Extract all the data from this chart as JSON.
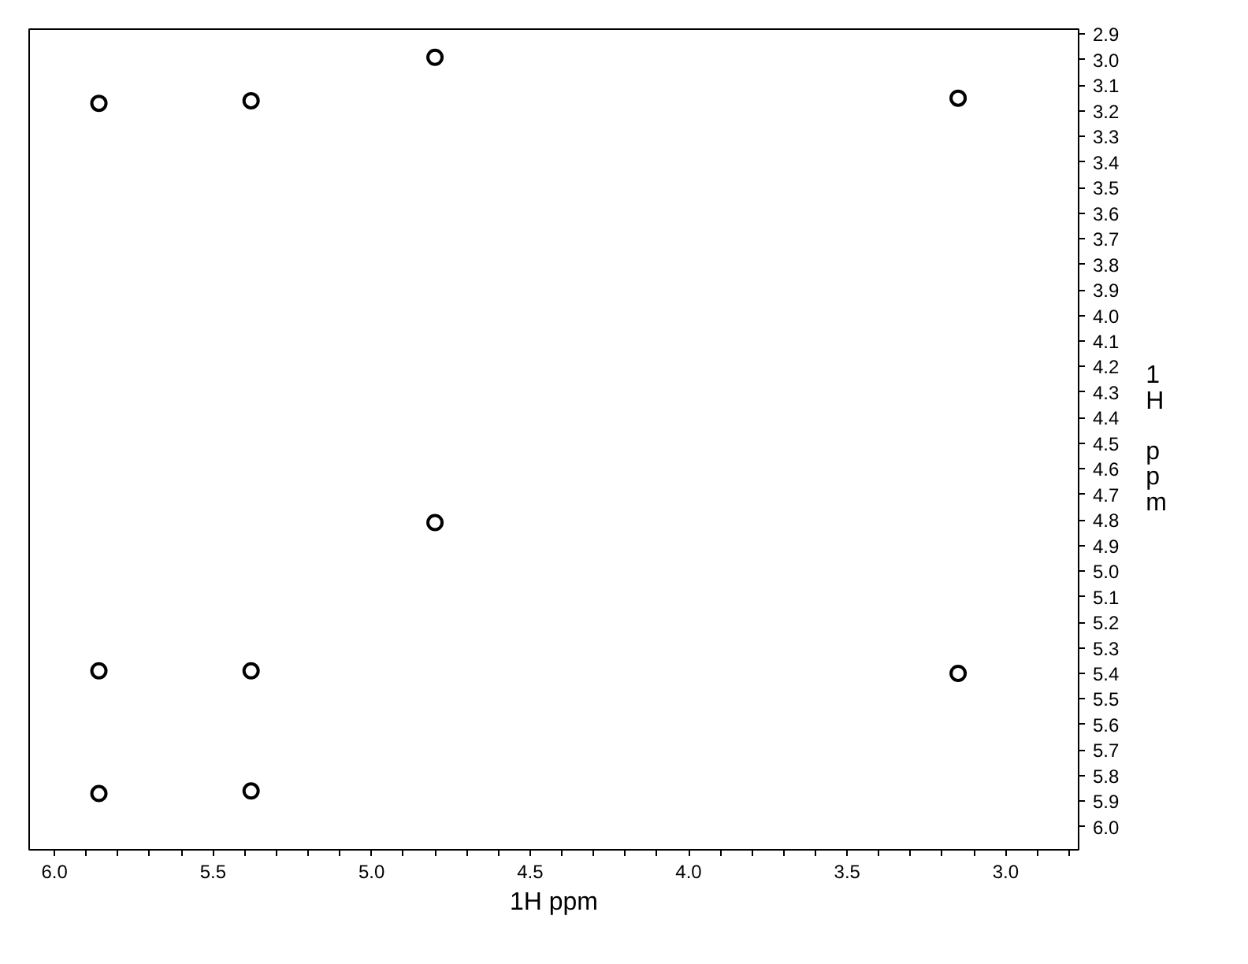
{
  "chart_data": {
    "type": "scatter",
    "xlabel": "1H ppm",
    "ylabel": "1\nH\n\np\np\nm",
    "x": [
      5.86,
      5.38,
      4.8,
      3.15,
      4.8,
      5.86,
      5.38,
      3.15,
      5.86,
      5.38
    ],
    "series": [
      {
        "color": "#000000",
        "values": [
          3.17,
          3.16,
          2.99,
          3.15,
          4.81,
          5.39,
          5.39,
          5.4,
          5.87,
          5.86
        ]
      }
    ],
    "marker": "circle",
    "grid": false,
    "xlim": [
      6.08,
      2.77
    ],
    "ylim": [
      6.09,
      2.88
    ],
    "xticks": [
      {
        "value": 6.0,
        "label": "6.0"
      },
      {
        "value": 5.9,
        "label": null
      },
      {
        "value": 5.8,
        "label": null
      },
      {
        "value": 5.7,
        "label": null
      },
      {
        "value": 5.6,
        "label": null
      },
      {
        "value": 5.5,
        "label": "5.5"
      },
      {
        "value": 5.4,
        "label": null
      },
      {
        "value": 5.3,
        "label": null
      },
      {
        "value": 5.2,
        "label": null
      },
      {
        "value": 5.1,
        "label": null
      },
      {
        "value": 5.0,
        "label": "5.0"
      },
      {
        "value": 4.9,
        "label": null
      },
      {
        "value": 4.8,
        "label": null
      },
      {
        "value": 4.7,
        "label": null
      },
      {
        "value": 4.6,
        "label": null
      },
      {
        "value": 4.5,
        "label": "4.5"
      },
      {
        "value": 4.4,
        "label": null
      },
      {
        "value": 4.3,
        "label": null
      },
      {
        "value": 4.2,
        "label": null
      },
      {
        "value": 4.1,
        "label": null
      },
      {
        "value": 4.0,
        "label": "4.0"
      },
      {
        "value": 3.9,
        "label": null
      },
      {
        "value": 3.8,
        "label": null
      },
      {
        "value": 3.7,
        "label": null
      },
      {
        "value": 3.6,
        "label": null
      },
      {
        "value": 3.5,
        "label": "3.5"
      },
      {
        "value": 3.4,
        "label": null
      },
      {
        "value": 3.3,
        "label": null
      },
      {
        "value": 3.2,
        "label": null
      },
      {
        "value": 3.1,
        "label": null
      },
      {
        "value": 3.0,
        "label": "3.0"
      },
      {
        "value": 2.9,
        "label": null
      },
      {
        "value": 2.8,
        "label": null
      }
    ],
    "yticks": [
      {
        "value": 2.9,
        "label": "2.9"
      },
      {
        "value": 3.0,
        "label": "3.0"
      },
      {
        "value": 3.1,
        "label": "3.1"
      },
      {
        "value": 3.2,
        "label": "3.2"
      },
      {
        "value": 3.3,
        "label": "3.3"
      },
      {
        "value": 3.4,
        "label": "3.4"
      },
      {
        "value": 3.5,
        "label": "3.5"
      },
      {
        "value": 3.6,
        "label": "3.6"
      },
      {
        "value": 3.7,
        "label": "3.7"
      },
      {
        "value": 3.8,
        "label": "3.8"
      },
      {
        "value": 3.9,
        "label": "3.9"
      },
      {
        "value": 4.0,
        "label": "4.0"
      },
      {
        "value": 4.1,
        "label": "4.1"
      },
      {
        "value": 4.2,
        "label": "4.2"
      },
      {
        "value": 4.3,
        "label": "4.3"
      },
      {
        "value": 4.4,
        "label": "4.4"
      },
      {
        "value": 4.5,
        "label": "4.5"
      },
      {
        "value": 4.6,
        "label": "4.6"
      },
      {
        "value": 4.7,
        "label": "4.7"
      },
      {
        "value": 4.8,
        "label": "4.8"
      },
      {
        "value": 4.9,
        "label": "4.9"
      },
      {
        "value": 5.0,
        "label": "5.0"
      },
      {
        "value": 5.1,
        "label": "5.1"
      },
      {
        "value": 5.2,
        "label": "5.2"
      },
      {
        "value": 5.3,
        "label": "5.3"
      },
      {
        "value": 5.4,
        "label": "5.4"
      },
      {
        "value": 5.5,
        "label": "5.5"
      },
      {
        "value": 5.6,
        "label": "5.6"
      },
      {
        "value": 5.7,
        "label": "5.7"
      },
      {
        "value": 5.8,
        "label": "5.8"
      },
      {
        "value": 5.9,
        "label": "5.9"
      },
      {
        "value": 6.0,
        "label": "6.0"
      }
    ]
  }
}
